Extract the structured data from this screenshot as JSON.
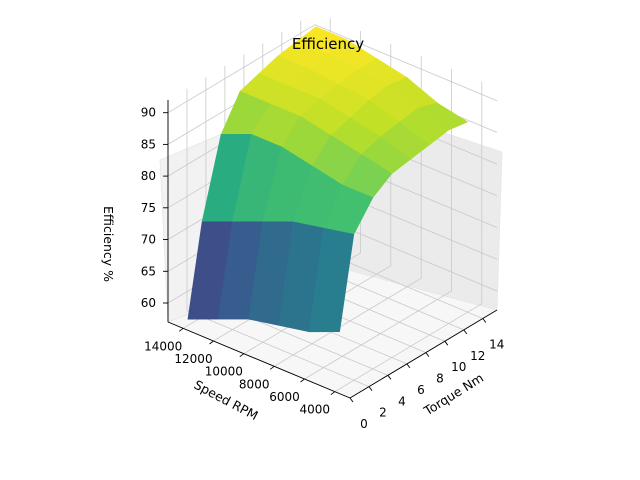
{
  "chart_data": {
    "type": "surface3d",
    "title": "Efficiency",
    "xlabel": "Torque Nm",
    "ylabel": "Speed RPM",
    "zlabel": "Efficiency %",
    "x_ticks": [
      "0",
      "2",
      "4",
      "6",
      "8",
      "10",
      "12",
      "14"
    ],
    "y_ticks": [
      "4000",
      "6000",
      "8000",
      "10000",
      "12000",
      "14000"
    ],
    "z_ticks": [
      "60",
      "65",
      "70",
      "75",
      "80",
      "85",
      "90"
    ],
    "xlim": [
      0,
      15.5
    ],
    "ylim": [
      3000,
      15000
    ],
    "zlim": [
      57,
      92
    ],
    "colormap": "viridis",
    "surface_rows": [
      {
        "speed_rpm": 14000,
        "efficiency_vs_torque": [
          58,
          72,
          84,
          89,
          90,
          91,
          91.5,
          92
        ]
      },
      {
        "speed_rpm": 12000,
        "efficiency_vs_torque": [
          60,
          74,
          86,
          89,
          90,
          91,
          91.5,
          92
        ]
      },
      {
        "speed_rpm": 10000,
        "efficiency_vs_torque": [
          62,
          76,
          86,
          89,
          90,
          90.5,
          91,
          91
        ]
      },
      {
        "speed_rpm": 8000,
        "efficiency_vs_torque": [
          63,
          78,
          85,
          88,
          89,
          90,
          90.5,
          90
        ]
      },
      {
        "speed_rpm": 6000,
        "efficiency_vs_torque": [
          64,
          79,
          84,
          87,
          88,
          88.5,
          89,
          88
        ]
      },
      {
        "speed_rpm": 4000,
        "efficiency_vs_torque": [
          66,
          80,
          84,
          86,
          86.5,
          87,
          87.5,
          87
        ]
      }
    ],
    "surface_torque_nm": [
      0.5,
      2,
      4,
      6,
      8,
      10,
      12,
      14
    ]
  }
}
